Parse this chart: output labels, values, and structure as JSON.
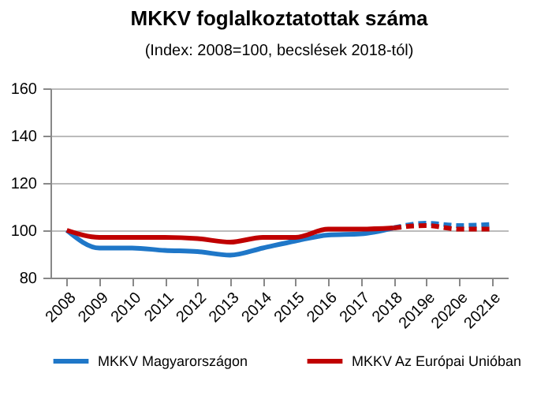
{
  "chart_data": {
    "type": "line",
    "title": "MKKV foglalkoztatottak száma",
    "subtitle": "(Index: 2008=100, becslések 2018-tól)",
    "categories": [
      "2008",
      "2009",
      "2010",
      "2011",
      "2012",
      "2013",
      "2014",
      "2015",
      "2016",
      "2017",
      "2018",
      "2019e",
      "2020e",
      "2021e"
    ],
    "series": [
      {
        "name": "MKKV Magyarországon",
        "color": "#1f77c8",
        "line_style": "solid",
        "values": [
          100,
          92.5,
          92.5,
          91.5,
          91,
          89.5,
          92.5,
          95.5,
          98,
          98.5,
          101,
          null,
          null,
          null
        ]
      },
      {
        "name": "MKKV Az Európai Unióban",
        "color": "#c00000",
        "line_style": "solid",
        "values": [
          100,
          97,
          97,
          97,
          96.5,
          95,
          97,
          97,
          100.5,
          100.5,
          101,
          null,
          null,
          null
        ]
      },
      {
        "color": "#1f77c8",
        "line_style": "dashed",
        "values": [
          null,
          null,
          null,
          null,
          null,
          null,
          null,
          null,
          null,
          null,
          101,
          103,
          102,
          102.5
        ]
      },
      {
        "color": "#c00000",
        "line_style": "dashed",
        "values": [
          null,
          null,
          null,
          null,
          null,
          null,
          null,
          null,
          null,
          null,
          101,
          102,
          100.5,
          100.5
        ]
      }
    ],
    "ylim": [
      80,
      160
    ],
    "yticks": [
      80,
      100,
      120,
      140,
      160
    ],
    "grid": "y",
    "legend": "bottom"
  }
}
